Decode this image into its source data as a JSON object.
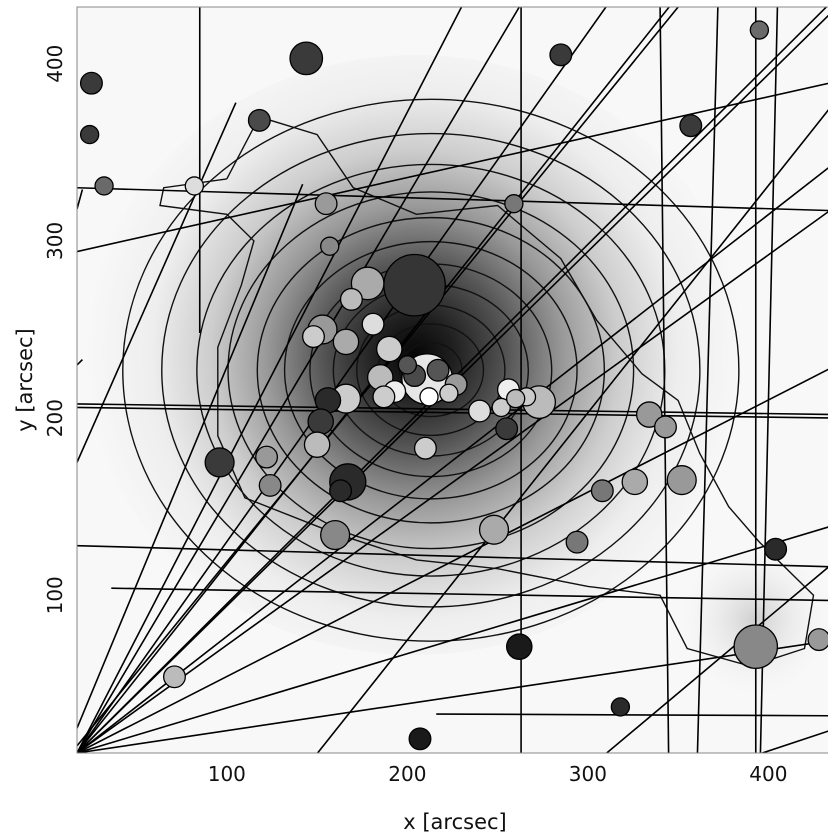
{
  "chart_data": {
    "type": "scatter",
    "xlabel": "x [arcsec]",
    "ylabel": "y [arcsec]",
    "xlim": [
      17,
      438
    ],
    "ylim": [
      11,
      432
    ],
    "x_ticks": [
      100,
      200,
      300,
      400
    ],
    "y_ticks": [
      100,
      200,
      300,
      400
    ],
    "x_tick_labels": [
      "100",
      "200",
      "300",
      "400"
    ],
    "y_tick_labels": [
      "100",
      "200",
      "300",
      "400"
    ],
    "background": "grayscale density map with contours",
    "density_peak": {
      "x": 213,
      "y": 227
    },
    "contour_radii": [
      16,
      27,
      38,
      50,
      62,
      75,
      89,
      104,
      120,
      138,
      158
    ],
    "outer_contour": [
      [
        100,
        335
      ],
      [
        118,
        370
      ],
      [
        150,
        360
      ],
      [
        170,
        330
      ],
      [
        205,
        315
      ],
      [
        250,
        320
      ],
      [
        285,
        290
      ],
      [
        305,
        255
      ],
      [
        330,
        225
      ],
      [
        350,
        210
      ],
      [
        362,
        180
      ],
      [
        378,
        150
      ],
      [
        395,
        130
      ],
      [
        425,
        100
      ],
      [
        420,
        70
      ],
      [
        390,
        60
      ],
      [
        355,
        70
      ],
      [
        340,
        100
      ],
      [
        300,
        105
      ],
      [
        250,
        115
      ],
      [
        205,
        120
      ],
      [
        160,
        135
      ],
      [
        110,
        155
      ],
      [
        95,
        190
      ],
      [
        95,
        240
      ],
      [
        108,
        275
      ],
      [
        115,
        300
      ],
      [
        100,
        315
      ],
      [
        63,
        320
      ],
      [
        65,
        330
      ],
      [
        100,
        335
      ]
    ],
    "points": [
      {
        "x": 25,
        "y": 389,
        "r": 6,
        "shade": "#3a3a3a"
      },
      {
        "x": 24,
        "y": 360,
        "r": 5,
        "shade": "#3a3a3a"
      },
      {
        "x": 32,
        "y": 331,
        "r": 5,
        "shade": "#6a6a6a"
      },
      {
        "x": 82,
        "y": 331,
        "r": 5,
        "shade": "#dddddd"
      },
      {
        "x": 118,
        "y": 368,
        "r": 6,
        "shade": "#4a4a4a"
      },
      {
        "x": 144,
        "y": 403,
        "r": 9,
        "shade": "#3a3a3a"
      },
      {
        "x": 285,
        "y": 405,
        "r": 6,
        "shade": "#3a3a3a"
      },
      {
        "x": 357,
        "y": 365,
        "r": 6,
        "shade": "#3a3a3a"
      },
      {
        "x": 395,
        "y": 419,
        "r": 5,
        "shade": "#6a6a6a"
      },
      {
        "x": 155,
        "y": 321,
        "r": 6,
        "shade": "#9a9a9a"
      },
      {
        "x": 259,
        "y": 321,
        "r": 5,
        "shade": "#777777"
      },
      {
        "x": 157,
        "y": 297,
        "r": 5,
        "shade": "#888888"
      },
      {
        "x": 204,
        "y": 275,
        "r": 17,
        "shade": "#353535"
      },
      {
        "x": 178,
        "y": 276,
        "r": 9,
        "shade": "#aaaaaa"
      },
      {
        "x": 169,
        "y": 267,
        "r": 6,
        "shade": "#bbbbbb"
      },
      {
        "x": 181,
        "y": 253,
        "r": 6,
        "shade": "#dddddd"
      },
      {
        "x": 153,
        "y": 250,
        "r": 8,
        "shade": "#999999"
      },
      {
        "x": 166,
        "y": 243,
        "r": 7,
        "shade": "#aaaaaa"
      },
      {
        "x": 148,
        "y": 246,
        "r": 6,
        "shade": "#cccccc"
      },
      {
        "x": 190,
        "y": 239,
        "r": 7,
        "shade": "#cccccc"
      },
      {
        "x": 211,
        "y": 222,
        "r": 14,
        "shade": "#e6e6e6"
      },
      {
        "x": 200,
        "y": 230,
        "r": 5,
        "shade": "#555555"
      },
      {
        "x": 217,
        "y": 227,
        "r": 6,
        "shade": "#555555"
      },
      {
        "x": 204,
        "y": 224,
        "r": 6,
        "shade": "#4a4a4a"
      },
      {
        "x": 185,
        "y": 223,
        "r": 7,
        "shade": "#bbbbbb"
      },
      {
        "x": 193,
        "y": 215,
        "r": 6,
        "shade": "#eeeeee"
      },
      {
        "x": 187,
        "y": 212,
        "r": 6,
        "shade": "#cccccc"
      },
      {
        "x": 212,
        "y": 212,
        "r": 5,
        "shade": "#ffffff"
      },
      {
        "x": 227,
        "y": 219,
        "r": 6,
        "shade": "#999999"
      },
      {
        "x": 223,
        "y": 214,
        "r": 5,
        "shade": "#cccccc"
      },
      {
        "x": 240,
        "y": 204,
        "r": 6,
        "shade": "#dddddd"
      },
      {
        "x": 252,
        "y": 206,
        "r": 5,
        "shade": "#cccccc"
      },
      {
        "x": 256,
        "y": 216,
        "r": 6,
        "shade": "#eeeeee"
      },
      {
        "x": 266,
        "y": 212,
        "r": 5,
        "shade": "#cccccc"
      },
      {
        "x": 273,
        "y": 209,
        "r": 9,
        "shade": "#bbbbbb"
      },
      {
        "x": 260,
        "y": 211,
        "r": 5,
        "shade": "#bbbbbb"
      },
      {
        "x": 156,
        "y": 210,
        "r": 7,
        "shade": "#2a2a2a"
      },
      {
        "x": 166,
        "y": 211,
        "r": 8,
        "shade": "#cccccc"
      },
      {
        "x": 152,
        "y": 198,
        "r": 7,
        "shade": "#3a3a3a"
      },
      {
        "x": 150,
        "y": 185,
        "r": 7,
        "shade": "#bbbbbb"
      },
      {
        "x": 210,
        "y": 183,
        "r": 6,
        "shade": "#cccccc"
      },
      {
        "x": 255,
        "y": 194,
        "r": 6,
        "shade": "#3a3a3a"
      },
      {
        "x": 334,
        "y": 202,
        "r": 7,
        "shade": "#999999"
      },
      {
        "x": 343,
        "y": 195,
        "r": 6,
        "shade": "#999999"
      },
      {
        "x": 96,
        "y": 175,
        "r": 8,
        "shade": "#3a3a3a"
      },
      {
        "x": 122,
        "y": 178,
        "r": 6,
        "shade": "#999999"
      },
      {
        "x": 124,
        "y": 162,
        "r": 6,
        "shade": "#888888"
      },
      {
        "x": 167,
        "y": 164,
        "r": 10,
        "shade": "#2a2a2a"
      },
      {
        "x": 163,
        "y": 159,
        "r": 6,
        "shade": "#2a2a2a"
      },
      {
        "x": 160,
        "y": 134,
        "r": 8,
        "shade": "#888888"
      },
      {
        "x": 248,
        "y": 137,
        "r": 8,
        "shade": "#aaaaaa"
      },
      {
        "x": 294,
        "y": 130,
        "r": 6,
        "shade": "#777777"
      },
      {
        "x": 308,
        "y": 159,
        "r": 6,
        "shade": "#777777"
      },
      {
        "x": 326,
        "y": 164,
        "r": 7,
        "shade": "#aaaaaa"
      },
      {
        "x": 352,
        "y": 165,
        "r": 8,
        "shade": "#999999"
      },
      {
        "x": 404,
        "y": 126,
        "r": 6,
        "shade": "#2a2a2a"
      },
      {
        "x": 262,
        "y": 71,
        "r": 7,
        "shade": "#1a1a1a"
      },
      {
        "x": 393,
        "y": 71,
        "r": 12,
        "shade": "#888888"
      },
      {
        "x": 428,
        "y": 75,
        "r": 6,
        "shade": "#999999"
      },
      {
        "x": 71,
        "y": 54,
        "r": 6,
        "shade": "#bbbbbb"
      },
      {
        "x": 318,
        "y": 37,
        "r": 5,
        "shade": "#2a2a2a"
      },
      {
        "x": 207,
        "y": 19,
        "r": 6,
        "shade": "#1a1a1a"
      }
    ],
    "line_segments": [
      [
        [
          17,
          330
        ],
        [
          438,
          317
        ]
      ],
      [
        [
          17,
          294
        ],
        [
          438,
          390
        ]
      ],
      [
        [
          17,
          206
        ],
        [
          438,
          200
        ]
      ],
      [
        [
          17,
          208
        ],
        [
          438,
          202
        ]
      ],
      [
        [
          17,
          128
        ],
        [
          438,
          116
        ]
      ],
      [
        [
          36,
          104
        ],
        [
          438,
          97
        ]
      ],
      [
        [
          216,
          33
        ],
        [
          438,
          32
        ]
      ],
      [
        [
          17,
          175
        ],
        [
          105,
          378
        ]
      ],
      [
        [
          17,
          230
        ],
        [
          20,
          233
        ]
      ],
      [
        [
          20,
          329
        ],
        [
          17,
          318
        ]
      ],
      [
        [
          85,
          432
        ],
        [
          85,
          248
        ]
      ],
      [
        [
          263,
          432
        ],
        [
          263,
          -15
        ]
      ],
      [
        [
          393,
          432
        ],
        [
          393,
          -15
        ]
      ],
      [
        [
          17,
          25
        ],
        [
          142,
          332
        ]
      ],
      [
        [
          17,
          11
        ],
        [
          230,
          432
        ]
      ],
      [
        [
          17,
          11
        ],
        [
          262,
          432
        ]
      ],
      [
        [
          17,
          11
        ],
        [
          310,
          432
        ]
      ],
      [
        [
          17,
          11
        ],
        [
          438,
          432
        ]
      ],
      [
        [
          17,
          11
        ],
        [
          438,
          438
        ]
      ],
      [
        [
          17,
          11
        ],
        [
          438,
          230
        ]
      ],
      [
        [
          17,
          11
        ],
        [
          438,
          320
        ]
      ],
      [
        [
          17,
          11
        ],
        [
          438,
          140
        ]
      ],
      [
        [
          17,
          11
        ],
        [
          438,
          75
        ]
      ],
      [
        [
          17,
          11
        ],
        [
          438,
          345
        ]
      ],
      [
        [
          17,
          11
        ],
        [
          345,
          432
        ]
      ],
      [
        [
          130,
          -15
        ],
        [
          438,
          380
        ]
      ],
      [
        [
          280,
          -15
        ],
        [
          438,
          120
        ]
      ],
      [
        [
          340,
          432
        ],
        [
          345,
          -15
        ]
      ],
      [
        [
          372,
          432
        ],
        [
          360,
          -15
        ]
      ],
      [
        [
          405,
          432
        ],
        [
          395,
          -15
        ]
      ],
      [
        [
          320,
          -15
        ],
        [
          438,
          25
        ]
      ],
      [
        [
          17,
          15
        ],
        [
          350,
          432
        ]
      ]
    ]
  }
}
